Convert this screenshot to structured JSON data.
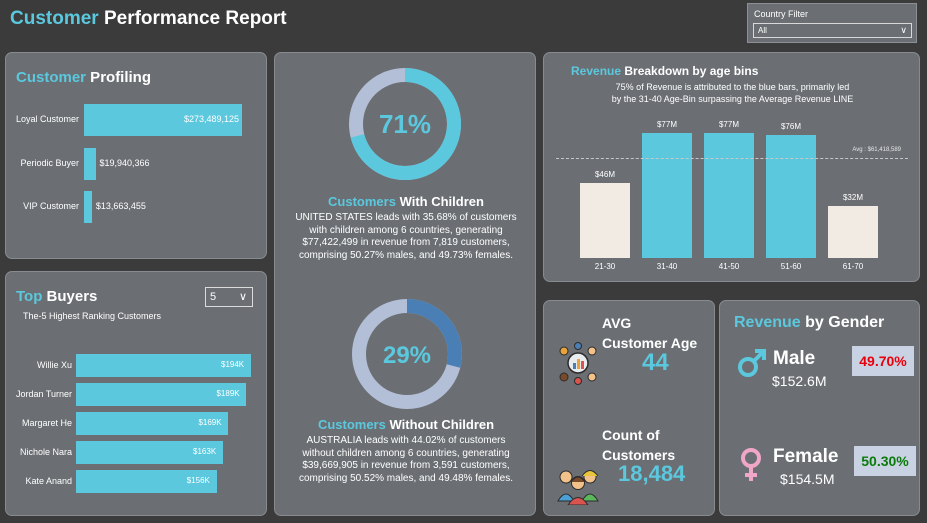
{
  "header": {
    "title_accent": "Customer",
    "title_rest": " Performance Report"
  },
  "filter": {
    "label": "Country Filter",
    "value": "All"
  },
  "profiling": {
    "title_accent": "Customer",
    "title_rest": " Profiling",
    "items": [
      {
        "label": "Loyal Customer",
        "value": 273489125,
        "display": "$273,489,125"
      },
      {
        "label": "Periodic Buyer",
        "value": 19940366,
        "display": "$19,940,366"
      },
      {
        "label": "VIP Customer",
        "value": 13663455,
        "display": "$13,663,455"
      }
    ]
  },
  "top_buyers": {
    "title_accent": "Top",
    "title_rest": " Buyers",
    "subtitle": "The-5 Highest Ranking Customers",
    "dropdown_value": "5",
    "items": [
      {
        "label": "Willie Xu",
        "value": 194,
        "display": "$194K"
      },
      {
        "label": "Jordan Turner",
        "value": 189,
        "display": "$189K"
      },
      {
        "label": "Margaret He",
        "value": 169,
        "display": "$169K"
      },
      {
        "label": "Nichole Nara",
        "value": 163,
        "display": "$163K"
      },
      {
        "label": "Kate Anand",
        "value": 156,
        "display": "$156K"
      }
    ]
  },
  "with_children": {
    "percent": 71,
    "percent_display": "71%",
    "label_accent": "Customers",
    "label_rest": " With Children",
    "text": "UNITED STATES leads with 35.68% of customers with children among 6 countries, generating $77,422,499 in revenue from 7,819 customers, comprising 50.27% males, and 49.73% females.",
    "colors": {
      "fill": "#5bc8de",
      "rest": "#b3bfd6"
    }
  },
  "without_children": {
    "percent": 29,
    "percent_display": "29%",
    "label_accent": "Customers",
    "label_rest": " Without Children",
    "text": "AUSTRALIA leads with 44.02% of customers without children among 6 countries, generating $39,669,905 in revenue from 3,591 customers, comprising 50.52% males, and 49.48% females.",
    "colors": {
      "fill": "#4a7fb5",
      "rest": "#b3bfd6"
    }
  },
  "revenue_age": {
    "title_accent": "Revenue",
    "title_rest": " Breakdown by age bins",
    "subtitle_line1": "75% of Revenue is attributed to the blue bars, primarily led",
    "subtitle_line2": "by the 31-40 Age-Bin surpassing the Average Revenue LINE",
    "avg_label": "Avg : $61,418,589"
  },
  "chart_data": {
    "type": "bar",
    "categories": [
      "21-30",
      "31-40",
      "41-50",
      "51-60",
      "61-70"
    ],
    "values": [
      46,
      77,
      77,
      76,
      32
    ],
    "data_labels": [
      "$46M",
      "$77M",
      "$77M",
      "$76M",
      "$32M"
    ],
    "average": 61.418589,
    "ylim": [
      0,
      80
    ],
    "colors": [
      "#f1ebe3",
      "#5bc8de",
      "#5bc8de",
      "#5bc8de",
      "#f1ebe3"
    ]
  },
  "avg_age": {
    "label_line1": "AVG",
    "label_line2": "Customer Age",
    "value": "44"
  },
  "count_customers": {
    "label_line1": "Count of",
    "label_line2": "Customers",
    "value": "18,484"
  },
  "gender": {
    "title_accent": "Revenue",
    "title_rest": " by Gender",
    "male": {
      "label": "Male",
      "value": "$152.6M",
      "pct": "49.70%",
      "pct_color": "#e8000b"
    },
    "female": {
      "label": "Female",
      "value": "$154.5M",
      "pct": "50.30%",
      "pct_color": "#0a7a0a"
    }
  }
}
